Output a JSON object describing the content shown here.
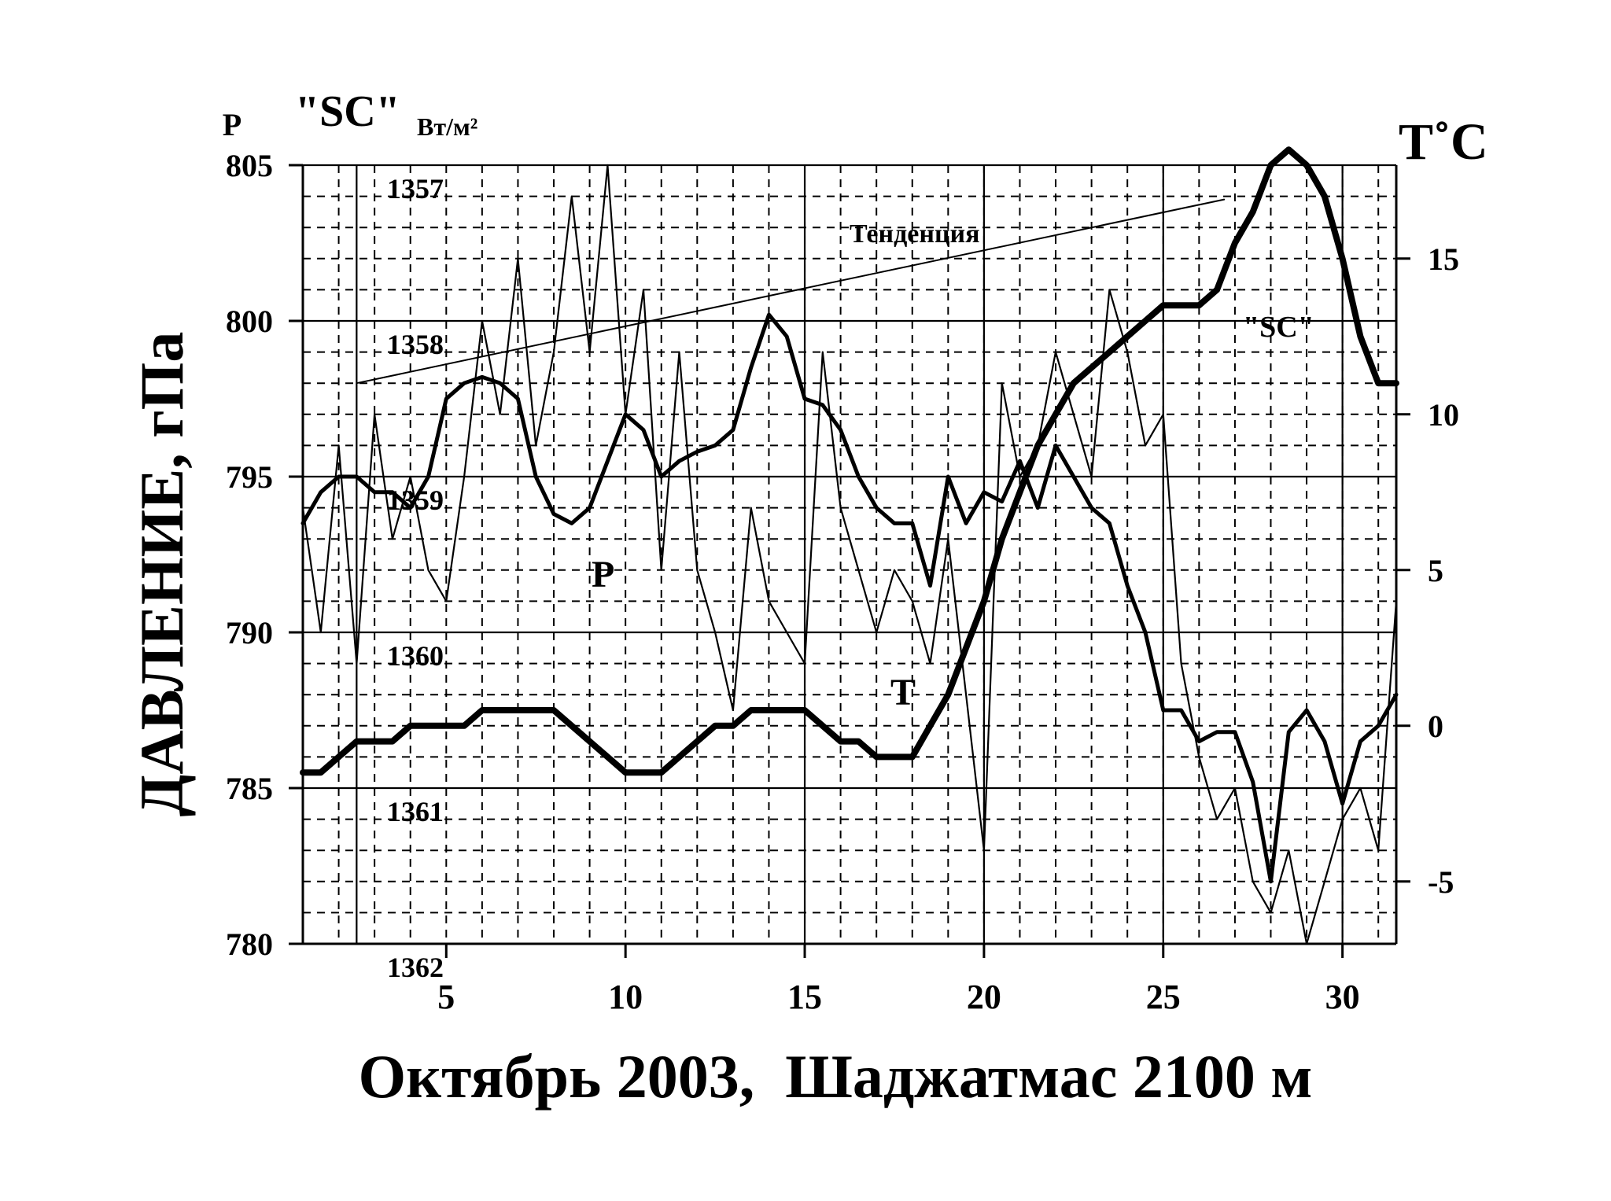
{
  "chart_data": {
    "type": "line",
    "title": "Октябрь 2003,  Шаджатмас 2100 м",
    "ylabel": "ДАВЛЕНИЕ, гПа",
    "y_left_symbol": "P",
    "y_sc_label": "\"SC\"",
    "y_sc_unit": "Вт/м²",
    "y_right_label": "T˚C",
    "xlim": [
      1,
      31.5
    ],
    "ylim_pressure": [
      780,
      805
    ],
    "ylim_temperature": [
      -7,
      18
    ],
    "sc_range_reversed": [
      1357,
      1362
    ],
    "grid": true,
    "x_ticks": [
      "5",
      "10",
      "15",
      "20",
      "25",
      "30"
    ],
    "y_left_ticks": [
      "805",
      "800",
      "795",
      "790",
      "785",
      "780"
    ],
    "y_right_ticks": [
      "15",
      "10",
      "5",
      "0",
      "-5"
    ],
    "sc_ticks": [
      "1357",
      "1358",
      "1359",
      "1360",
      "1361",
      "1362"
    ],
    "annotations": {
      "trend": "Тенденция",
      "p_series": "P",
      "t_series": "T",
      "sc_series": "\"SC\""
    },
    "series": [
      {
        "name": "P",
        "units": "гПа",
        "x": [
          1,
          1.5,
          2,
          2.5,
          3,
          3.5,
          4,
          4.5,
          5,
          5.5,
          6,
          6.5,
          7,
          7.5,
          8,
          8.5,
          9,
          9.5,
          10,
          10.5,
          11,
          11.5,
          12,
          12.5,
          13,
          13.5,
          14,
          14.5,
          15,
          15.5,
          16,
          16.5,
          17,
          17.5,
          18,
          18.5,
          19,
          19.5,
          20,
          20.5,
          21,
          21.5,
          22,
          22.5,
          23,
          23.5,
          24,
          24.5,
          25,
          25.5,
          26,
          26.5,
          27,
          27.5,
          28,
          28.5,
          29,
          29.5,
          30,
          30.5,
          31,
          31.5
        ],
        "values": [
          793.5,
          794.5,
          795,
          795,
          794.5,
          794.5,
          794,
          795,
          797.5,
          798,
          798.2,
          798,
          797.5,
          795,
          793.8,
          793.5,
          794,
          795.5,
          797,
          796.5,
          795,
          795.5,
          795.8,
          796,
          796.5,
          798.5,
          800.2,
          799.5,
          797.5,
          797.3,
          796.5,
          795,
          794,
          793.5,
          793.5,
          791.5,
          795,
          793.5,
          794.5,
          794.2,
          795.5,
          794,
          796,
          795,
          794,
          793.5,
          791.5,
          790,
          787.5,
          787.5,
          786.5,
          786.8,
          786.8,
          785.2,
          782,
          786.8,
          787.5,
          786.5,
          784.5,
          786.5,
          787,
          788
        ]
      },
      {
        "name": "T",
        "units": "°C",
        "x": [
          1,
          1.5,
          2,
          2.5,
          3,
          3.5,
          4,
          4.5,
          5,
          5.5,
          6,
          6.5,
          7,
          7.5,
          8,
          8.5,
          9,
          9.5,
          10,
          10.5,
          11,
          11.5,
          12,
          12.5,
          13,
          13.5,
          14,
          14.5,
          15,
          15.5,
          16,
          16.5,
          17,
          17.5,
          18,
          18.5,
          19,
          19.5,
          20,
          20.5,
          21,
          21.5,
          22,
          22.5,
          23,
          23.5,
          24,
          24.5,
          25,
          25.5,
          26,
          26.5,
          27,
          27.5,
          28,
          28.5,
          29,
          29.5,
          30,
          30.5,
          31,
          31.5
        ],
        "values": [
          7,
          3,
          9,
          2,
          10,
          6,
          8,
          5,
          4,
          8,
          13,
          10,
          15,
          9,
          12,
          17,
          12,
          18,
          10,
          14,
          5,
          12,
          5,
          3,
          0.5,
          7,
          4,
          3,
          2,
          12,
          7,
          5,
          3,
          5,
          4,
          2,
          6,
          1,
          -4,
          11,
          8,
          9,
          12,
          10,
          8,
          14,
          12,
          9,
          10,
          2,
          -1,
          -3,
          -2,
          -5,
          -6,
          -4,
          -7,
          -5,
          -3,
          -2,
          -4,
          4
        ]
      },
      {
        "name": "\"SC\"",
        "units": "Вт/м²",
        "x": [
          1,
          1.5,
          2,
          2.5,
          3,
          3.5,
          4,
          4.5,
          5,
          5.5,
          6,
          6.5,
          7,
          7.5,
          8,
          8.5,
          9,
          9.5,
          10,
          10.5,
          11,
          11.5,
          12,
          12.5,
          13,
          13.5,
          14,
          14.5,
          15,
          15.5,
          16,
          16.5,
          17,
          17.5,
          18,
          18.5,
          19,
          19.5,
          20,
          20.5,
          21,
          21.5,
          22,
          22.5,
          23,
          23.5,
          24,
          24.5,
          25,
          25.5,
          26,
          26.5,
          27,
          27.5,
          28,
          28.5,
          29,
          29.5,
          30,
          30.5,
          31,
          31.5
        ],
        "values": [
          1360.9,
          1360.9,
          1360.8,
          1360.7,
          1360.7,
          1360.7,
          1360.6,
          1360.6,
          1360.6,
          1360.6,
          1360.5,
          1360.5,
          1360.5,
          1360.5,
          1360.5,
          1360.6,
          1360.7,
          1360.8,
          1360.9,
          1360.9,
          1360.9,
          1360.8,
          1360.7,
          1360.6,
          1360.6,
          1360.5,
          1360.5,
          1360.5,
          1360.5,
          1360.6,
          1360.7,
          1360.7,
          1360.8,
          1360.8,
          1360.8,
          1360.6,
          1360.4,
          1360.1,
          1359.8,
          1359.4,
          1359.1,
          1358.8,
          1358.6,
          1358.4,
          1358.3,
          1358.2,
          1358.1,
          1358,
          1357.9,
          1357.9,
          1357.9,
          1357.8,
          1357.5,
          1357.3,
          1357,
          1356.9,
          1357,
          1357.2,
          1357.6,
          1358.1,
          1358.4,
          1358.4
        ]
      },
      {
        "name": "Тенденция",
        "units": "гПа",
        "x": [
          2.5,
          26.7
        ],
        "values": [
          798.0,
          803.9
        ]
      }
    ]
  }
}
